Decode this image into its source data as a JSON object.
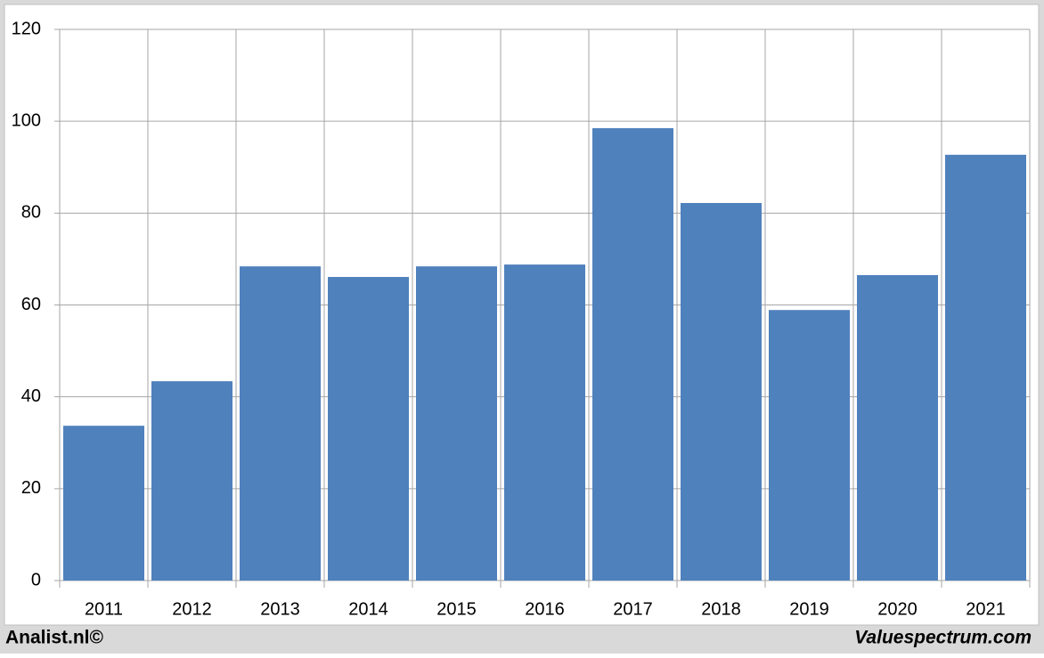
{
  "chart_data": {
    "type": "bar",
    "categories": [
      "2011",
      "2012",
      "2013",
      "2014",
      "2015",
      "2016",
      "2017",
      "2018",
      "2019",
      "2020",
      "2021"
    ],
    "values": [
      33.7,
      43.4,
      68.4,
      66.1,
      68.4,
      68.8,
      98.5,
      82.2,
      58.9,
      66.5,
      92.7
    ],
    "color": "#4f81bd",
    "ylim": [
      0,
      120
    ],
    "yticks": [
      0,
      20,
      40,
      60,
      80,
      100,
      120
    ],
    "grid": true,
    "annotations": [
      "Analist.nl©",
      "Valuespectrum.com"
    ]
  }
}
